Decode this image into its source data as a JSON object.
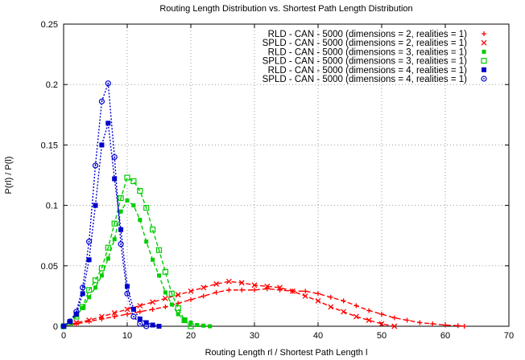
{
  "chart_data": {
    "type": "line",
    "title": "Routing Length Distribution vs. Shortest Path Length Distribution",
    "xlabel": "Routing Length rl / Shortest Path Length l",
    "ylabel": "P(rl) / P(l)",
    "xlim": [
      0,
      70
    ],
    "ylim": [
      0,
      0.25
    ],
    "xticks": [
      "0",
      "10",
      "20",
      "30",
      "40",
      "50",
      "60",
      "70"
    ],
    "yticks": [
      "0",
      "0.05",
      "0.1",
      "0.15",
      "0.2",
      "0.25"
    ],
    "grid": true,
    "legend_position": "top-right",
    "series": [
      {
        "name": "RLD - CAN - 5000 (dimensions = 2, realities = 1)",
        "color": "#ff0000",
        "marker": "plus",
        "x": [
          0,
          2,
          4,
          6,
          8,
          10,
          12,
          14,
          16,
          18,
          20,
          22,
          24,
          26,
          28,
          30,
          32,
          34,
          36,
          38,
          40,
          42,
          44,
          46,
          48,
          50,
          52,
          54,
          56,
          58,
          60,
          62,
          63
        ],
        "y": [
          0,
          0.002,
          0.004,
          0.006,
          0.008,
          0.01,
          0.012,
          0.014,
          0.016,
          0.019,
          0.022,
          0.025,
          0.028,
          0.03,
          0.03,
          0.03,
          0.031,
          0.03,
          0.029,
          0.029,
          0.027,
          0.024,
          0.021,
          0.017,
          0.013,
          0.01,
          0.007,
          0.005,
          0.003,
          0.002,
          0.001,
          0.0005,
          0
        ]
      },
      {
        "name": "SPLD - CAN - 5000 (dimensions = 2, realities = 1)",
        "color": "#ff0000",
        "marker": "x",
        "x": [
          0,
          2,
          4,
          6,
          8,
          10,
          12,
          14,
          16,
          18,
          20,
          22,
          24,
          26,
          28,
          30,
          32,
          34,
          36,
          38,
          40,
          42,
          44,
          46,
          48,
          50,
          52
        ],
        "y": [
          0,
          0.003,
          0.005,
          0.008,
          0.011,
          0.014,
          0.017,
          0.02,
          0.023,
          0.026,
          0.029,
          0.032,
          0.035,
          0.037,
          0.036,
          0.034,
          0.033,
          0.032,
          0.029,
          0.025,
          0.021,
          0.016,
          0.012,
          0.008,
          0.005,
          0.002,
          0
        ]
      },
      {
        "name": "RLD - CAN - 5000 (dimensions = 3, realities = 1)",
        "color": "#00cc00",
        "marker": "filled-square-small",
        "x": [
          0,
          1,
          2,
          3,
          4,
          5,
          6,
          7,
          8,
          9,
          10,
          11,
          12,
          13,
          14,
          15,
          16,
          17,
          18,
          19,
          20,
          21,
          22,
          23
        ],
        "y": [
          0,
          0.004,
          0.009,
          0.015,
          0.024,
          0.032,
          0.042,
          0.056,
          0.072,
          0.095,
          0.104,
          0.1,
          0.088,
          0.07,
          0.055,
          0.042,
          0.028,
          0.018,
          0.01,
          0.005,
          0.003,
          0.001,
          0.0005,
          0
        ]
      },
      {
        "name": "SPLD - CAN - 5000 (dimensions = 3, realities = 1)",
        "color": "#00cc00",
        "marker": "open-square",
        "x": [
          0,
          1,
          2,
          3,
          4,
          5,
          6,
          7,
          8,
          9,
          10,
          11,
          12,
          13,
          14,
          15,
          16,
          17,
          18,
          19,
          20
        ],
        "y": [
          0,
          0.003,
          0.008,
          0.016,
          0.03,
          0.038,
          0.048,
          0.065,
          0.085,
          0.106,
          0.123,
          0.12,
          0.112,
          0.098,
          0.08,
          0.063,
          0.045,
          0.027,
          0.015,
          0.005,
          0
        ]
      },
      {
        "name": "RLD - CAN - 5000 (dimensions = 4, realities = 1)",
        "color": "#0000cc",
        "marker": "filled-square",
        "x": [
          0,
          1,
          2,
          3,
          4,
          5,
          6,
          7,
          8,
          9,
          10,
          11,
          12,
          13,
          14,
          15
        ],
        "y": [
          0,
          0.004,
          0.01,
          0.027,
          0.055,
          0.1,
          0.15,
          0.168,
          0.122,
          0.08,
          0.033,
          0.014,
          0.006,
          0.003,
          0.001,
          0
        ]
      },
      {
        "name": "SPLD - CAN - 5000 (dimensions = 4, realities = 1)",
        "color": "#0000cc",
        "marker": "circle",
        "x": [
          0,
          1,
          2,
          3,
          4,
          5,
          6,
          7,
          8,
          9,
          10,
          11,
          12,
          13
        ],
        "y": [
          0,
          0.004,
          0.012,
          0.032,
          0.07,
          0.133,
          0.186,
          0.201,
          0.14,
          0.068,
          0.027,
          0.008,
          0.002,
          0
        ]
      }
    ]
  }
}
